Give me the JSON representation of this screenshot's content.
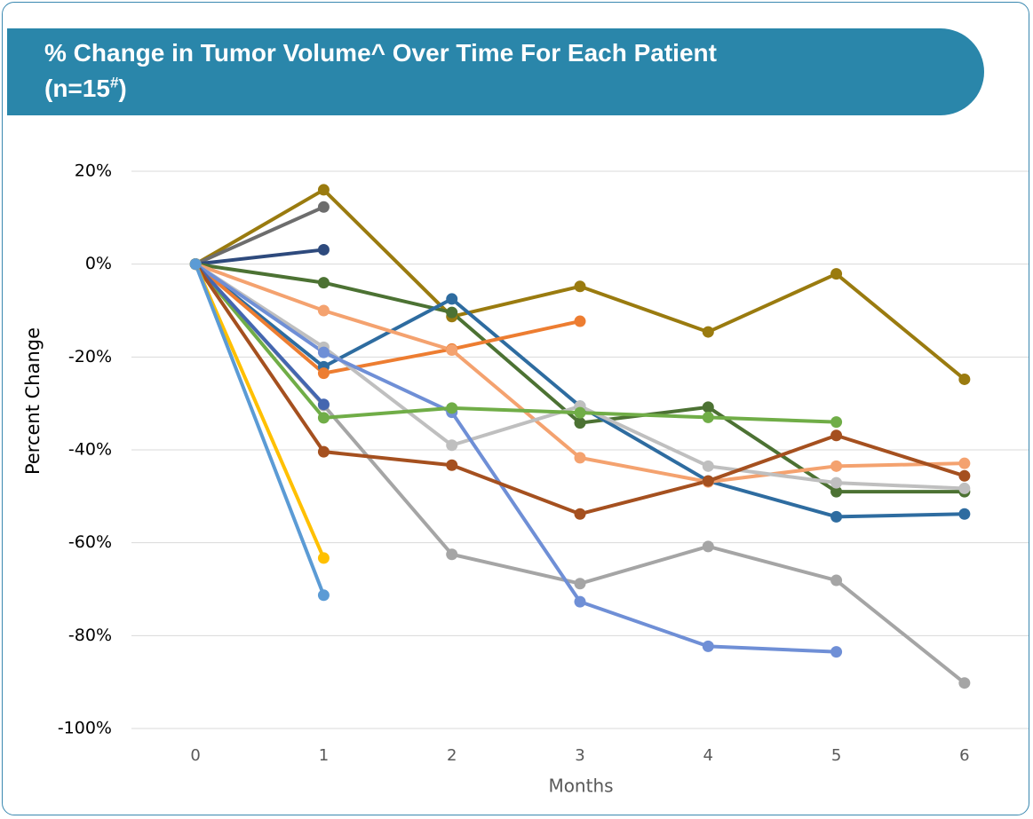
{
  "chart_data": {
    "type": "line",
    "title": "% Change in Tumor Volume^ Over Time For Each Patient",
    "title_line2": "(n=15",
    "title_superscript": "#",
    "title_end": ")",
    "y_label": "Percent Change",
    "x_label": "Months",
    "x": [
      0,
      1,
      2,
      3,
      4,
      5,
      6
    ],
    "xlim": [
      -0.5,
      6.5
    ],
    "xticks": [
      0,
      1,
      2,
      3,
      4,
      5,
      6
    ],
    "ylim": [
      -100,
      20
    ],
    "yticks": [
      {
        "value": 20,
        "label": "20%"
      },
      {
        "value": 0,
        "label": "0%"
      },
      {
        "value": -20,
        "label": "-20%"
      },
      {
        "value": -40,
        "label": "-40%"
      },
      {
        "value": -60,
        "label": "-60%"
      },
      {
        "value": -80,
        "label": "-80%"
      },
      {
        "value": -100,
        "label": "-100%"
      }
    ],
    "grid": true,
    "series": [
      {
        "color": "#9a7b0f",
        "values": [
          0,
          16,
          -11.3,
          -4.8,
          -14.6,
          -2.1,
          -24.8
        ]
      },
      {
        "color": "#6d6d6d",
        "values": [
          0,
          12.3,
          null,
          null,
          null,
          null,
          null
        ]
      },
      {
        "color": "#2e4a7d",
        "values": [
          0,
          3.1,
          null,
          null,
          null,
          null,
          null
        ]
      },
      {
        "color": "#4c7233",
        "values": [
          0,
          -4,
          -10.4,
          -34.2,
          -30.8,
          -49,
          -49
        ]
      },
      {
        "color": "#2e6ca0",
        "values": [
          0,
          -22.1,
          -7.5,
          -30.6,
          -46.7,
          -54.4,
          -53.8
        ]
      },
      {
        "color": "#ed7d31",
        "values": [
          0,
          -23.5,
          -18.3,
          -12.3,
          null,
          null,
          null
        ]
      },
      {
        "color": "#f4a26f",
        "values": [
          0,
          -10,
          -18.5,
          -41.7,
          -46.9,
          -43.5,
          -42.9
        ]
      },
      {
        "color": "#bfbfbf",
        "values": [
          0,
          -17.9,
          -39,
          -30.6,
          -43.5,
          -47.1,
          -48.3
        ]
      },
      {
        "color": "#a5a5a5",
        "values": [
          0,
          -30.4,
          -62.5,
          -68.8,
          -60.8,
          -68.1,
          -90.2
        ]
      },
      {
        "color": "#6f8fd6",
        "values": [
          0,
          -19,
          -31.9,
          -72.7,
          -82.3,
          -83.5,
          null
        ]
      },
      {
        "color": "#70ad47",
        "values": [
          0,
          -33.1,
          -31,
          -32,
          -33,
          -34,
          null
        ]
      },
      {
        "color": "#4466b0",
        "values": [
          0,
          -30.2,
          null,
          null,
          null,
          null,
          null
        ]
      },
      {
        "color": "#a5501f",
        "values": [
          0,
          -40.4,
          -43.3,
          -53.8,
          -46.7,
          -36.9,
          -45.6
        ]
      },
      {
        "color": "#ffc000",
        "values": [
          0,
          -63.3,
          null,
          null,
          null,
          null,
          null
        ]
      },
      {
        "color": "#5b9bd5",
        "values": [
          0,
          -71.3,
          null,
          null,
          null,
          null,
          null
        ]
      }
    ]
  }
}
